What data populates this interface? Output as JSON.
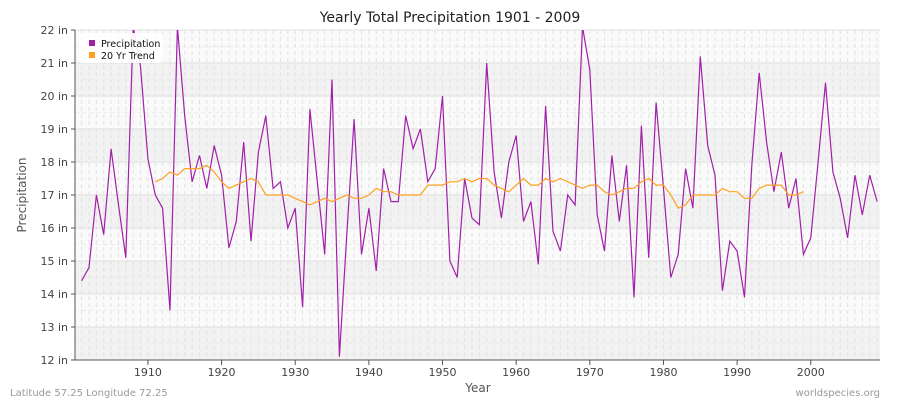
{
  "chart_data": {
    "type": "line",
    "title": "Yearly Total Precipitation 1901 - 2009",
    "xlabel": "Year",
    "ylabel": "Precipitation",
    "xlim": [
      1901,
      2009
    ],
    "ylim": [
      12,
      22
    ],
    "x_ticks": [
      1910,
      1920,
      1930,
      1940,
      1950,
      1960,
      1970,
      1980,
      1990,
      2000
    ],
    "y_ticks": [
      12,
      13,
      14,
      15,
      16,
      17,
      18,
      19,
      20,
      21,
      22
    ],
    "y_tick_labels": [
      "12 in",
      "13 in",
      "14 in",
      "15 in",
      "16 in",
      "17 in",
      "18 in",
      "19 in",
      "20 in",
      "21 in",
      "22 in"
    ],
    "grid": true,
    "legend_position": "top-left",
    "series": [
      {
        "name": "Precipitation",
        "color": "#a020a8",
        "start_year": 1901,
        "values": [
          14.4,
          14.8,
          17.0,
          15.8,
          18.4,
          16.7,
          15.1,
          22.1,
          20.9,
          18.1,
          17.0,
          16.6,
          13.5,
          22.1,
          19.4,
          17.4,
          18.2,
          17.2,
          18.5,
          17.6,
          15.4,
          16.2,
          18.6,
          15.6,
          18.3,
          19.4,
          17.2,
          17.4,
          16.0,
          16.6,
          13.6,
          19.6,
          17.4,
          15.2,
          20.5,
          12.1,
          15.8,
          19.3,
          15.2,
          16.6,
          14.7,
          17.8,
          16.8,
          16.8,
          19.4,
          18.4,
          19.0,
          17.4,
          17.8,
          20.0,
          15.0,
          14.5,
          17.5,
          16.3,
          16.1,
          21.0,
          17.7,
          16.3,
          18.0,
          18.8,
          16.2,
          16.8,
          14.9,
          19.7,
          15.9,
          15.3,
          17.0,
          16.7,
          22.1,
          20.8,
          16.4,
          15.3,
          18.2,
          16.2,
          17.9,
          13.9,
          19.1,
          15.1,
          19.8,
          17.2,
          14.5,
          15.2,
          17.8,
          16.6,
          21.2,
          18.5,
          17.6,
          14.1,
          15.6,
          15.3,
          13.9,
          17.9,
          20.7,
          18.6,
          17.1,
          18.3,
          16.6,
          17.5,
          15.2,
          15.7,
          18.0,
          20.4,
          17.7,
          16.9,
          15.7,
          17.6,
          16.4,
          17.6,
          16.8
        ]
      },
      {
        "name": "20 Yr Trend",
        "color": "#ffa020",
        "start_year": 1911,
        "values": [
          17.4,
          17.5,
          17.7,
          17.6,
          17.8,
          17.8,
          17.8,
          17.9,
          17.7,
          17.4,
          17.2,
          17.3,
          17.4,
          17.5,
          17.4,
          17.0,
          17.0,
          17.0,
          17.0,
          16.9,
          16.8,
          16.7,
          16.8,
          16.9,
          16.8,
          16.9,
          17.0,
          16.9,
          16.9,
          17.0,
          17.2,
          17.1,
          17.1,
          17.0,
          17.0,
          17.0,
          17.0,
          17.3,
          17.3,
          17.3,
          17.4,
          17.4,
          17.5,
          17.4,
          17.5,
          17.5,
          17.3,
          17.2,
          17.1,
          17.3,
          17.5,
          17.3,
          17.3,
          17.5,
          17.4,
          17.5,
          17.4,
          17.3,
          17.2,
          17.3,
          17.3,
          17.1,
          17.0,
          17.1,
          17.2,
          17.2,
          17.4,
          17.5,
          17.3,
          17.3,
          17.0,
          16.6,
          16.7,
          17.0,
          17.0,
          17.0,
          17.0,
          17.2,
          17.1,
          17.1,
          16.9,
          16.9,
          17.2,
          17.3,
          17.3,
          17.3,
          17.0,
          17.0,
          17.1
        ]
      }
    ]
  },
  "footer": {
    "location": "Latitude 57.25 Longitude 72.25",
    "site": "worldspecies.org"
  }
}
